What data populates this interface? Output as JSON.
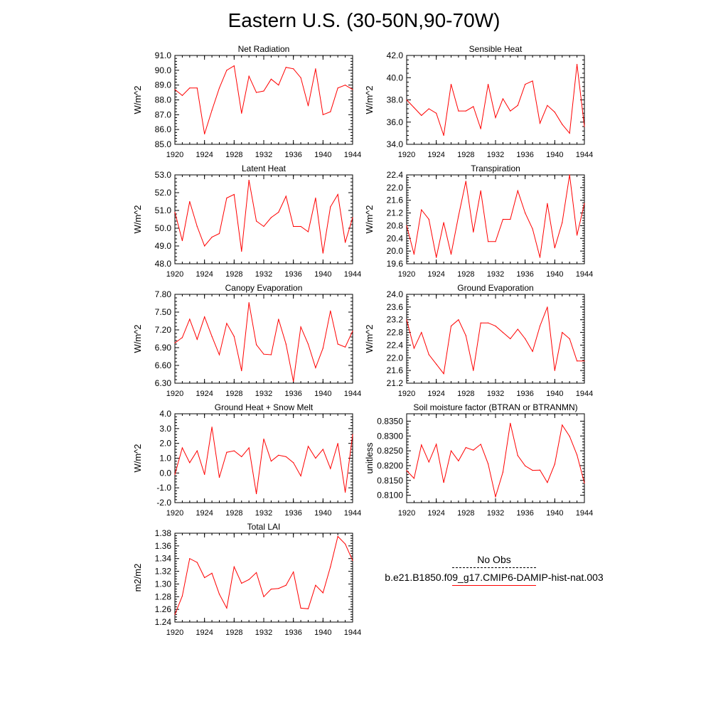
{
  "title": "Eastern U.S. (30-50N,90-70W)",
  "line_color": "#ff0000",
  "legend": {
    "obs_label": "No Obs",
    "model_label": "b.e21.B1850.f09_g17.CMIP6-DAMIP-hist-nat.003"
  },
  "chart_data": [
    {
      "type": "line",
      "title": "Net Radiation",
      "ylabel": "W/m^2",
      "xlim": [
        1920,
        1944
      ],
      "ylim": [
        85.0,
        91.0
      ],
      "xticks": [
        1920,
        1924,
        1928,
        1932,
        1936,
        1940,
        1944
      ],
      "yticks": [
        "85.0",
        "86.0",
        "87.0",
        "88.0",
        "89.0",
        "90.0",
        "91.0"
      ],
      "x": [
        1920,
        1921,
        1922,
        1923,
        1924,
        1925,
        1926,
        1927,
        1928,
        1929,
        1930,
        1931,
        1932,
        1933,
        1934,
        1935,
        1936,
        1937,
        1938,
        1939,
        1940,
        1941,
        1942,
        1943,
        1944
      ],
      "values": [
        88.7,
        88.3,
        88.8,
        88.8,
        85.7,
        87.3,
        88.8,
        90.0,
        90.3,
        87.1,
        89.6,
        88.5,
        88.6,
        89.4,
        89.0,
        90.2,
        90.1,
        89.5,
        87.6,
        90.1,
        87.0,
        87.2,
        88.8,
        89.0,
        88.7
      ]
    },
    {
      "type": "line",
      "title": "Sensible Heat",
      "ylabel": "W/m^2",
      "xlim": [
        1920,
        1944
      ],
      "ylim": [
        34.0,
        42.0
      ],
      "xticks": [
        1920,
        1924,
        1928,
        1932,
        1936,
        1940,
        1944
      ],
      "yticks": [
        "34.0",
        "36.0",
        "38.0",
        "40.0",
        "42.0"
      ],
      "x": [
        1920,
        1921,
        1922,
        1923,
        1924,
        1925,
        1926,
        1927,
        1928,
        1929,
        1930,
        1931,
        1932,
        1933,
        1934,
        1935,
        1936,
        1937,
        1938,
        1939,
        1940,
        1941,
        1942,
        1943,
        1944
      ],
      "values": [
        38.0,
        37.3,
        36.6,
        37.2,
        36.8,
        34.8,
        39.4,
        37.0,
        37.0,
        37.4,
        35.4,
        39.4,
        36.4,
        38.1,
        37.0,
        37.5,
        39.4,
        39.7,
        35.9,
        37.5,
        36.9,
        35.8,
        35.0,
        41.2,
        35.6
      ]
    },
    {
      "type": "line",
      "title": "Latent Heat",
      "ylabel": "W/m^2",
      "xlim": [
        1920,
        1944
      ],
      "ylim": [
        48.0,
        53.0
      ],
      "xticks": [
        1920,
        1924,
        1928,
        1932,
        1936,
        1940,
        1944
      ],
      "yticks": [
        "48.0",
        "49.0",
        "50.0",
        "51.0",
        "52.0",
        "53.0"
      ],
      "x": [
        1920,
        1921,
        1922,
        1923,
        1924,
        1925,
        1926,
        1927,
        1928,
        1929,
        1930,
        1931,
        1932,
        1933,
        1934,
        1935,
        1936,
        1937,
        1938,
        1939,
        1940,
        1941,
        1942,
        1943,
        1944
      ],
      "values": [
        50.9,
        49.3,
        51.5,
        50.1,
        49.0,
        49.5,
        49.7,
        51.7,
        51.9,
        48.7,
        52.7,
        50.4,
        50.1,
        50.6,
        50.9,
        51.8,
        50.1,
        50.1,
        49.8,
        51.7,
        48.6,
        51.2,
        51.9,
        49.2,
        50.6
      ]
    },
    {
      "type": "line",
      "title": "Transpiration",
      "ylabel": "W/m^2",
      "xlim": [
        1920,
        1944
      ],
      "ylim": [
        19.6,
        22.4
      ],
      "xticks": [
        1920,
        1924,
        1928,
        1932,
        1936,
        1940,
        1944
      ],
      "yticks": [
        "19.6",
        "20.0",
        "20.4",
        "20.8",
        "21.2",
        "21.6",
        "22.0",
        "22.4"
      ],
      "x": [
        1920,
        1921,
        1922,
        1923,
        1924,
        1925,
        1926,
        1927,
        1928,
        1929,
        1930,
        1931,
        1932,
        1933,
        1934,
        1935,
        1936,
        1937,
        1938,
        1939,
        1940,
        1941,
        1942,
        1943,
        1944
      ],
      "values": [
        20.8,
        19.9,
        21.3,
        21.0,
        19.8,
        20.9,
        19.9,
        21.1,
        22.2,
        20.6,
        21.9,
        20.3,
        20.3,
        21.0,
        21.0,
        21.9,
        21.2,
        20.7,
        19.8,
        21.5,
        20.1,
        20.9,
        22.4,
        20.5,
        21.5
      ]
    },
    {
      "type": "line",
      "title": "Canopy Evaporation",
      "ylabel": "W/m^2",
      "xlim": [
        1920,
        1944
      ],
      "ylim": [
        6.3,
        7.8
      ],
      "xticks": [
        1920,
        1924,
        1928,
        1932,
        1936,
        1940,
        1944
      ],
      "yticks": [
        "6.30",
        "6.60",
        "6.90",
        "7.20",
        "7.50",
        "7.80"
      ],
      "x": [
        1920,
        1921,
        1922,
        1923,
        1924,
        1925,
        1926,
        1927,
        1928,
        1929,
        1930,
        1931,
        1932,
        1933,
        1934,
        1935,
        1936,
        1937,
        1938,
        1939,
        1940,
        1941,
        1942,
        1943,
        1944
      ],
      "values": [
        6.98,
        7.07,
        7.38,
        7.04,
        7.42,
        7.09,
        6.78,
        7.31,
        7.09,
        6.51,
        7.66,
        6.95,
        6.79,
        6.78,
        7.38,
        6.96,
        6.33,
        7.25,
        6.96,
        6.56,
        6.89,
        7.52,
        6.96,
        6.91,
        7.18
      ]
    },
    {
      "type": "line",
      "title": "Ground Evaporation",
      "ylabel": "W/m^2",
      "xlim": [
        1920,
        1944
      ],
      "ylim": [
        21.2,
        24.0
      ],
      "xticks": [
        1920,
        1924,
        1928,
        1932,
        1936,
        1940,
        1944
      ],
      "yticks": [
        "21.2",
        "21.6",
        "22.0",
        "22.4",
        "22.8",
        "23.2",
        "23.6",
        "24.0"
      ],
      "x": [
        1920,
        1921,
        1922,
        1923,
        1924,
        1925,
        1926,
        1927,
        1928,
        1929,
        1930,
        1931,
        1932,
        1933,
        1934,
        1935,
        1936,
        1937,
        1938,
        1939,
        1940,
        1941,
        1942,
        1943,
        1944
      ],
      "values": [
        23.2,
        22.3,
        22.8,
        22.1,
        21.8,
        21.5,
        23.0,
        23.2,
        22.7,
        21.6,
        23.1,
        23.1,
        23.0,
        22.8,
        22.6,
        22.9,
        22.6,
        22.2,
        23.0,
        23.6,
        21.6,
        22.8,
        22.6,
        21.9,
        21.9
      ]
    },
    {
      "type": "line",
      "title": "Ground Heat + Snow Melt",
      "ylabel": "W/m^2",
      "xlim": [
        1920,
        1944
      ],
      "ylim": [
        -2.0,
        4.0
      ],
      "xticks": [
        1920,
        1924,
        1928,
        1932,
        1936,
        1940,
        1944
      ],
      "yticks": [
        "-2.0",
        "-1.0",
        "0.0",
        "1.0",
        "2.0",
        "3.0",
        "4.0"
      ],
      "x": [
        1920,
        1921,
        1922,
        1923,
        1924,
        1925,
        1926,
        1927,
        1928,
        1929,
        1930,
        1931,
        1932,
        1933,
        1934,
        1935,
        1936,
        1937,
        1938,
        1939,
        1940,
        1941,
        1942,
        1943,
        1944
      ],
      "values": [
        -0.1,
        1.7,
        0.7,
        1.5,
        -0.1,
        3.1,
        -0.3,
        1.4,
        1.5,
        1.1,
        1.7,
        -1.4,
        2.3,
        0.8,
        1.2,
        1.1,
        0.7,
        -0.2,
        1.8,
        1.0,
        1.6,
        0.3,
        2.0,
        -1.3,
        2.6
      ]
    },
    {
      "type": "line",
      "title": "Soil moisture factor (BTRAN or BTRANMN)",
      "ylabel": "unitless",
      "xlim": [
        1920,
        1944
      ],
      "ylim": [
        0.8075,
        0.8375
      ],
      "xticks": [
        1920,
        1924,
        1928,
        1932,
        1936,
        1940,
        1944
      ],
      "yticks": [
        "0.8100",
        "0.8150",
        "0.8200",
        "0.8250",
        "0.8300",
        "0.8350"
      ],
      "x": [
        1920,
        1921,
        1922,
        1923,
        1924,
        1925,
        1926,
        1927,
        1928,
        1929,
        1930,
        1931,
        1932,
        1933,
        1934,
        1935,
        1936,
        1937,
        1938,
        1939,
        1940,
        1941,
        1942,
        1943,
        1944
      ],
      "values": [
        0.8183,
        0.8157,
        0.827,
        0.8212,
        0.8272,
        0.8143,
        0.825,
        0.8216,
        0.8261,
        0.8252,
        0.8272,
        0.8206,
        0.8095,
        0.8178,
        0.8343,
        0.8234,
        0.8199,
        0.8184,
        0.8185,
        0.8143,
        0.8205,
        0.8337,
        0.8299,
        0.8236,
        0.8141
      ]
    },
    {
      "type": "line",
      "title": "Total LAI",
      "ylabel": "m2/m2",
      "xlim": [
        1920,
        1944
      ],
      "ylim": [
        1.24,
        1.38
      ],
      "xticks": [
        1920,
        1924,
        1928,
        1932,
        1936,
        1940,
        1944
      ],
      "yticks": [
        "1.24",
        "1.26",
        "1.28",
        "1.30",
        "1.32",
        "1.34",
        "1.36",
        "1.38"
      ],
      "x": [
        1920,
        1921,
        1922,
        1923,
        1924,
        1925,
        1926,
        1927,
        1928,
        1929,
        1930,
        1931,
        1932,
        1933,
        1934,
        1935,
        1936,
        1937,
        1938,
        1939,
        1940,
        1941,
        1942,
        1943,
        1944
      ],
      "values": [
        1.252,
        1.281,
        1.34,
        1.334,
        1.31,
        1.317,
        1.284,
        1.262,
        1.327,
        1.301,
        1.307,
        1.318,
        1.28,
        1.292,
        1.293,
        1.298,
        1.319,
        1.262,
        1.261,
        1.298,
        1.286,
        1.327,
        1.375,
        1.363,
        1.337
      ]
    }
  ]
}
